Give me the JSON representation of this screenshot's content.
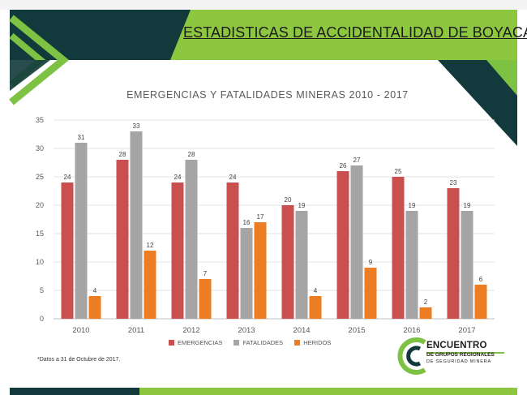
{
  "slide": {
    "banner_title": "ESTADISTICAS DE ACCIDENTALIDAD DE BOYACÁ",
    "footnote": "*Datos a 31 de Octubre de 2017.",
    "logo": {
      "line1": "ENCUENTRO",
      "line2": "DE GRUPOS REGIONALES",
      "line3": "DE SEGURIDAD MINERA"
    },
    "colors": {
      "banner_green": "#8dc63f",
      "dark_teal": "#123a3c",
      "bright_green": "#7dc242"
    }
  },
  "chart_data": {
    "type": "bar",
    "title": "EMERGENCIAS Y FATALIDADES MINERAS 2010 - 2017",
    "categories": [
      "2010",
      "2011",
      "2012",
      "2013",
      "2014",
      "2015",
      "2016",
      "2017"
    ],
    "series": [
      {
        "name": "EMERGENCIAS",
        "color": "#c9504f",
        "values": [
          24,
          28,
          24,
          24,
          20,
          26,
          25,
          23
        ]
      },
      {
        "name": "FATALIDADES",
        "color": "#a5a5a5",
        "values": [
          31,
          33,
          28,
          16,
          19,
          27,
          19,
          19
        ]
      },
      {
        "name": "HERIDOS",
        "color": "#ec7d22",
        "values": [
          4,
          12,
          7,
          17,
          4,
          9,
          2,
          6
        ]
      }
    ],
    "ylim": [
      0,
      35
    ],
    "yticks": [
      "0",
      "5",
      "10",
      "15",
      "20",
      "25",
      "30",
      "35"
    ],
    "grid": true,
    "legend_position": "bottom"
  }
}
